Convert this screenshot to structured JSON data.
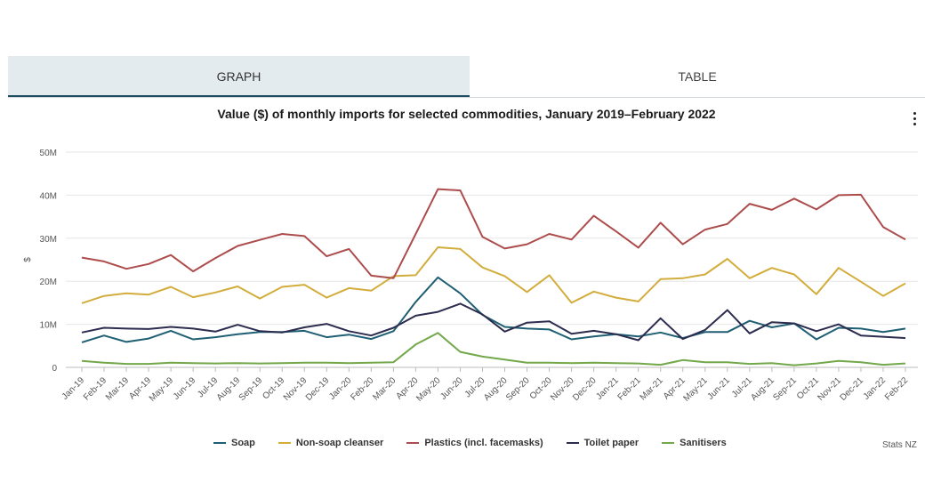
{
  "tabs": [
    {
      "label": "GRAPH"
    },
    {
      "label": "TABLE"
    }
  ],
  "chart_data": {
    "type": "line",
    "title": "Value ($) of monthly imports for selected commodities, January 2019–February 2022",
    "ylabel": "$",
    "xlabel": "",
    "ylim": [
      0,
      50
    ],
    "yticks": [
      {
        "value": 0,
        "label": "0"
      },
      {
        "value": 10,
        "label": "10M"
      },
      {
        "value": 20,
        "label": "20M"
      },
      {
        "value": 30,
        "label": "30M"
      },
      {
        "value": 40,
        "label": "40M"
      },
      {
        "value": 50,
        "label": "50M"
      }
    ],
    "categories": [
      "Jan-19",
      "Feb-19",
      "Mar-19",
      "Apr-19",
      "May-19",
      "Jun-19",
      "Jul-19",
      "Aug-19",
      "Sep-19",
      "Oct-19",
      "Nov-19",
      "Dec-19",
      "Jan-20",
      "Feb-20",
      "Mar-20",
      "Apr-20",
      "May-20",
      "Jun-20",
      "Jul-20",
      "Aug-20",
      "Sep-20",
      "Oct-20",
      "Nov-20",
      "Dec-20",
      "Jan-21",
      "Feb-21",
      "Mar-21",
      "Apr-21",
      "May-21",
      "Jun-21",
      "Jul-21",
      "Aug-21",
      "Sep-21",
      "Oct-21",
      "Nov-21",
      "Dec-21",
      "Jan-22",
      "Feb-22"
    ],
    "series": [
      {
        "name": "Soap",
        "color": "#1f5f73",
        "values": [
          5.8,
          7.4,
          5.9,
          6.7,
          8.5,
          6.5,
          7,
          7.7,
          8.2,
          8.2,
          8.5,
          7,
          7.6,
          6.6,
          8.4,
          15.2,
          20.9,
          17.2,
          12.2,
          9.4,
          9.0,
          8.8,
          6.5,
          7.2,
          7.7,
          7.2,
          8.1,
          6.8,
          8.2,
          8.2,
          10.8,
          9.3,
          10.2,
          6.5,
          9.2,
          9.0,
          8.2,
          9.0
        ]
      },
      {
        "name": "Non-soap cleanser",
        "color": "#d2ad3c",
        "values": [
          14.9,
          16.6,
          17.2,
          16.9,
          18.7,
          16.3,
          17.4,
          18.8,
          16.0,
          18.7,
          19.2,
          16.2,
          18.4,
          17.8,
          21.2,
          21.4,
          27.9,
          27.5,
          23.2,
          21.2,
          17.5,
          21.4,
          15.0,
          17.6,
          16.2,
          15.3,
          20.5,
          20.7,
          21.6,
          25.2,
          20.7,
          23.1,
          21.6,
          17.0,
          23.1,
          19.9,
          16.6,
          19.5
        ]
      },
      {
        "name": "Plastics (incl. facemasks)",
        "color": "#ad4c4c",
        "values": [
          25.5,
          24.6,
          22.9,
          24.0,
          26.1,
          22.3,
          25.4,
          28.2,
          29.6,
          31.0,
          30.5,
          25.8,
          27.5,
          21.3,
          20.7,
          31.0,
          41.4,
          41.1,
          30.3,
          27.6,
          28.6,
          31.0,
          29.7,
          35.2,
          31.6,
          27.8,
          33.6,
          28.6,
          32.0,
          33.3,
          38.0,
          36.6,
          39.2,
          36.7,
          40.0,
          40.1,
          32.6,
          29.7
        ]
      },
      {
        "name": "Toilet paper",
        "color": "#2b2c4e",
        "values": [
          8.1,
          9.2,
          9.0,
          8.9,
          9.4,
          9.0,
          8.3,
          9.9,
          8.4,
          8.1,
          9.3,
          10.1,
          8.4,
          7.4,
          9.2,
          12.0,
          12.9,
          14.8,
          12.3,
          8.3,
          10.4,
          10.7,
          7.8,
          8.5,
          7.7,
          6.3,
          11.4,
          6.6,
          8.7,
          13.3,
          7.9,
          10.5,
          10.2,
          8.4,
          10.0,
          7.4,
          7.1,
          6.8
        ]
      },
      {
        "name": "Sanitisers",
        "color": "#72a84a",
        "values": [
          1.5,
          1.1,
          0.8,
          0.8,
          1.1,
          1.0,
          0.9,
          1.0,
          0.9,
          1.0,
          1.1,
          1.1,
          1.0,
          1.1,
          1.2,
          5.3,
          8.0,
          3.6,
          2.5,
          1.8,
          1.1,
          1.1,
          1.0,
          1.1,
          1.0,
          0.9,
          0.6,
          1.7,
          1.2,
          1.2,
          0.8,
          1.0,
          0.5,
          0.9,
          1.5,
          1.2,
          0.6,
          0.9
        ]
      }
    ],
    "source": "Stats NZ"
  }
}
